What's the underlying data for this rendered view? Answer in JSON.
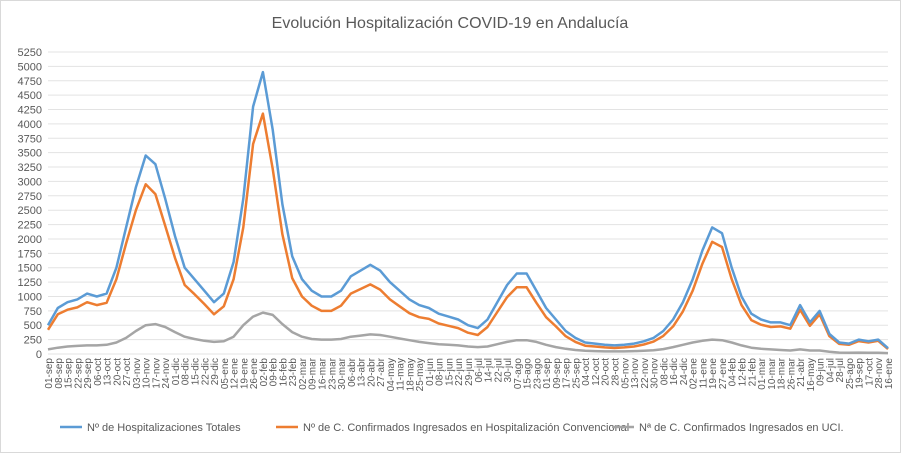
{
  "chart_data": {
    "type": "line",
    "title": "Evolución Hospitalización COVID-19 en Andalucía",
    "categories": [
      "01-sep",
      "08-sep",
      "15-sep",
      "22-sep",
      "29-sep",
      "06-oct",
      "13-oct",
      "20-oct",
      "27-oct",
      "03-nov",
      "10-nov",
      "17-nov",
      "24-nov",
      "01-dic",
      "08-dic",
      "15-dic",
      "22-dic",
      "29-dic",
      "05-ene",
      "12-ene",
      "19-ene",
      "26-ene",
      "02-feb",
      "09-feb",
      "16-feb",
      "23-feb",
      "02-mar",
      "09-mar",
      "16-mar",
      "23-mar",
      "30-mar",
      "06-abr",
      "13-abr",
      "20-abr",
      "27-abr",
      "04-may",
      "11-may",
      "18-may",
      "25-may",
      "01-jun",
      "08-jun",
      "15-jun",
      "22-jun",
      "29-jun",
      "06-jul",
      "14-jul",
      "22-jul",
      "30-jul",
      "07-ago",
      "15-ago",
      "23-ago",
      "01-sep",
      "09-sep",
      "17-sep",
      "25-sep",
      "04-oct",
      "12-oct",
      "20-oct",
      "28-oct",
      "05-nov",
      "13-nov",
      "22-nov",
      "30-nov",
      "08-dic",
      "16-dic",
      "24-dic",
      "02-ene",
      "11-ene",
      "19-ene",
      "27-ene",
      "04-feb",
      "12-feb",
      "21-feb",
      "01-mar",
      "10-mar",
      "18-mar",
      "26-mar",
      "21-abr",
      "16-may",
      "09-jun",
      "04-jul",
      "28-jul",
      "25-ago",
      "19-sep",
      "17-oct",
      "28-nov",
      "16-ene"
    ],
    "series": [
      {
        "name": "Nº de Hospitalizaciones Totales",
        "color": "#5b9bd5",
        "values": [
          500,
          800,
          900,
          950,
          1050,
          1000,
          1050,
          1500,
          2200,
          2900,
          3450,
          3300,
          2700,
          2050,
          1500,
          1300,
          1100,
          900,
          1050,
          1600,
          2700,
          4300,
          4900,
          3900,
          2600,
          1700,
          1300,
          1100,
          1000,
          1000,
          1100,
          1350,
          1450,
          1550,
          1450,
          1250,
          1100,
          950,
          850,
          800,
          700,
          650,
          600,
          500,
          450,
          600,
          900,
          1200,
          1400,
          1400,
          1100,
          800,
          600,
          400,
          280,
          200,
          180,
          160,
          150,
          160,
          180,
          220,
          280,
          400,
          600,
          900,
          1300,
          1800,
          2200,
          2100,
          1500,
          1000,
          700,
          600,
          550,
          550,
          500,
          850,
          550,
          750,
          350,
          200,
          180,
          250,
          220,
          250,
          100
        ]
      },
      {
        "name": "Nº de C. Confirmados Ingresados en Hospitalización Convencional",
        "color": "#ed7d31",
        "values": [
          420,
          690,
          770,
          810,
          900,
          850,
          890,
          1300,
          1920,
          2500,
          2950,
          2780,
          2230,
          1670,
          1200,
          1040,
          870,
          690,
          830,
          1300,
          2200,
          3650,
          4180,
          3220,
          2080,
          1320,
          1000,
          840,
          750,
          750,
          840,
          1050,
          1130,
          1210,
          1120,
          950,
          830,
          710,
          640,
          610,
          530,
          490,
          450,
          370,
          330,
          470,
          730,
          990,
          1160,
          1160,
          890,
          640,
          480,
          310,
          210,
          145,
          130,
          115,
          105,
          115,
          130,
          165,
          215,
          315,
          480,
          740,
          1100,
          1570,
          1950,
          1860,
          1300,
          850,
          590,
          510,
          470,
          480,
          440,
          770,
          490,
          690,
          310,
          175,
          160,
          225,
          200,
          230,
          85
        ]
      },
      {
        "name": "Nª de C. Confirmados Ingresados en UCI.",
        "color": "#a5a5a5",
        "values": [
          80,
          110,
          130,
          140,
          150,
          150,
          160,
          200,
          280,
          400,
          500,
          520,
          470,
          380,
          300,
          260,
          230,
          210,
          220,
          300,
          500,
          650,
          720,
          680,
          520,
          380,
          300,
          260,
          250,
          250,
          260,
          300,
          320,
          340,
          330,
          300,
          270,
          240,
          210,
          190,
          170,
          160,
          150,
          130,
          120,
          130,
          170,
          210,
          240,
          240,
          210,
          160,
          120,
          90,
          70,
          55,
          50,
          45,
          45,
          45,
          50,
          55,
          65,
          85,
          120,
          160,
          200,
          230,
          250,
          240,
          200,
          150,
          110,
          90,
          80,
          70,
          60,
          80,
          60,
          60,
          40,
          25,
          20,
          25,
          20,
          20,
          15
        ]
      }
    ],
    "ylim": [
      0,
      5250
    ],
    "yticks": [
      0,
      250,
      500,
      750,
      1000,
      1250,
      1500,
      1750,
      2000,
      2250,
      2500,
      2750,
      3000,
      3250,
      3500,
      3750,
      4000,
      4250,
      4500,
      4750,
      5000,
      5250
    ],
    "grid": true,
    "legend": "bottom"
  }
}
